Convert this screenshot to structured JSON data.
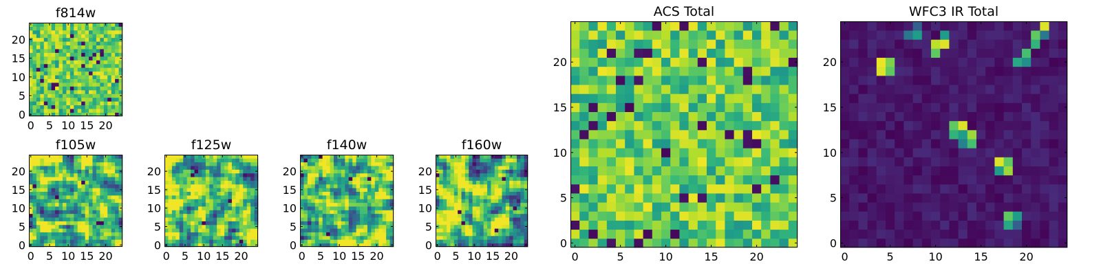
{
  "chart_data": [
    {
      "id": "f814w",
      "type": "heatmap",
      "title": "f814w",
      "grid_size": 25,
      "colormap": "viridis",
      "pattern": "uniform",
      "seed": 11,
      "xticks": [
        "0",
        "5",
        "10",
        "15",
        "20"
      ],
      "yticks": [
        "0",
        "5",
        "10",
        "15",
        "20"
      ]
    },
    {
      "id": "f105w",
      "type": "heatmap",
      "title": "f105w",
      "grid_size": 25,
      "colormap": "viridis",
      "pattern": "smooth",
      "seed": 23,
      "xticks": [
        "0",
        "5",
        "10",
        "15",
        "20"
      ],
      "yticks": [
        "0",
        "5",
        "10",
        "15",
        "20"
      ]
    },
    {
      "id": "f125w",
      "type": "heatmap",
      "title": "f125w",
      "grid_size": 25,
      "colormap": "viridis",
      "pattern": "smooth",
      "seed": 37,
      "xticks": [
        "0",
        "5",
        "10",
        "15",
        "20"
      ],
      "yticks": [
        "0",
        "5",
        "10",
        "15",
        "20"
      ]
    },
    {
      "id": "f140w",
      "type": "heatmap",
      "title": "f140w",
      "grid_size": 25,
      "colormap": "viridis",
      "pattern": "smooth",
      "seed": 41,
      "xticks": [
        "0",
        "5",
        "10",
        "15",
        "20"
      ],
      "yticks": [
        "0",
        "5",
        "10",
        "15",
        "20"
      ]
    },
    {
      "id": "f160w",
      "type": "heatmap",
      "title": "f160w",
      "grid_size": 25,
      "colormap": "viridis",
      "pattern": "smooth",
      "seed": 53,
      "xticks": [
        "0",
        "5",
        "10",
        "15",
        "20"
      ],
      "yticks": [
        "0",
        "5",
        "10",
        "15",
        "20"
      ]
    },
    {
      "id": "acs-total",
      "type": "heatmap",
      "title": "ACS Total",
      "grid_size": 25,
      "colormap": "viridis",
      "pattern": "uniform",
      "seed": 67,
      "xticks": [
        "0",
        "5",
        "10",
        "15",
        "20"
      ],
      "yticks": [
        "0",
        "5",
        "10",
        "15",
        "20"
      ]
    },
    {
      "id": "wfc3-ir-total",
      "type": "heatmap",
      "title": "WFC3 IR Total",
      "grid_size": 25,
      "colormap": "viridis",
      "pattern": "sparse",
      "seed": 79,
      "xticks": [
        "0",
        "5",
        "10",
        "15",
        "20"
      ],
      "yticks": [
        "0",
        "5",
        "10",
        "15",
        "20"
      ],
      "bright_cells": [
        {
          "x": 4,
          "y": 19,
          "v": 0.95
        },
        {
          "x": 4,
          "y": 20,
          "v": 0.97
        },
        {
          "x": 5,
          "y": 20,
          "v": 0.8
        },
        {
          "x": 5,
          "y": 19,
          "v": 0.75
        },
        {
          "x": 10,
          "y": 22,
          "v": 0.9
        },
        {
          "x": 11,
          "y": 22,
          "v": 0.95
        },
        {
          "x": 10,
          "y": 21,
          "v": 0.75
        },
        {
          "x": 11,
          "y": 23,
          "v": 0.55
        },
        {
          "x": 7,
          "y": 23,
          "v": 0.4
        },
        {
          "x": 8,
          "y": 23,
          "v": 0.55
        },
        {
          "x": 8,
          "y": 24,
          "v": 0.3
        },
        {
          "x": 22,
          "y": 24,
          "v": 0.95
        },
        {
          "x": 21,
          "y": 23,
          "v": 0.75
        },
        {
          "x": 21,
          "y": 22,
          "v": 0.65
        },
        {
          "x": 20,
          "y": 21,
          "v": 0.7
        },
        {
          "x": 19,
          "y": 20,
          "v": 0.6
        },
        {
          "x": 20,
          "y": 20,
          "v": 0.5
        },
        {
          "x": 22,
          "y": 23,
          "v": 0.4
        },
        {
          "x": 12,
          "y": 13,
          "v": 0.75
        },
        {
          "x": 13,
          "y": 13,
          "v": 0.95
        },
        {
          "x": 12,
          "y": 12,
          "v": 0.65
        },
        {
          "x": 13,
          "y": 12,
          "v": 0.55
        },
        {
          "x": 14,
          "y": 12,
          "v": 0.85
        },
        {
          "x": 14,
          "y": 11,
          "v": 0.7
        },
        {
          "x": 13,
          "y": 11,
          "v": 0.45
        },
        {
          "x": 17,
          "y": 9,
          "v": 0.95
        },
        {
          "x": 18,
          "y": 9,
          "v": 0.75
        },
        {
          "x": 17,
          "y": 8,
          "v": 0.55
        },
        {
          "x": 18,
          "y": 8,
          "v": 0.85
        },
        {
          "x": 18,
          "y": 2,
          "v": 0.6
        },
        {
          "x": 18,
          "y": 3,
          "v": 0.75
        },
        {
          "x": 19,
          "y": 3,
          "v": 0.55
        },
        {
          "x": 19,
          "y": 2,
          "v": 0.3
        }
      ]
    }
  ]
}
